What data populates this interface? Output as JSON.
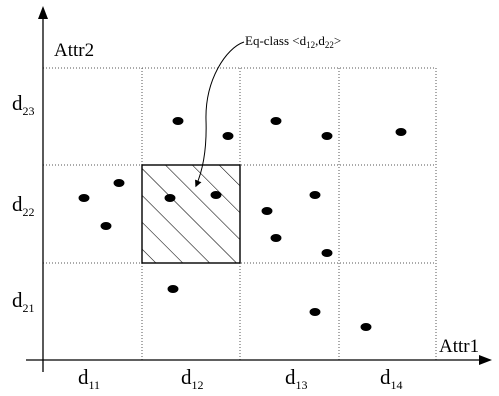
{
  "axes": {
    "x_label": "Attr1",
    "y_label": "Attr2"
  },
  "x_domains": [
    {
      "base": "d",
      "sub": "11"
    },
    {
      "base": "d",
      "sub": "12"
    },
    {
      "base": "d",
      "sub": "13"
    },
    {
      "base": "d",
      "sub": "14"
    }
  ],
  "y_domains": [
    {
      "base": "d",
      "sub": "21"
    },
    {
      "base": "d",
      "sub": "22"
    },
    {
      "base": "d",
      "sub": "23"
    }
  ],
  "callout": {
    "prefix": "Eq-class <d",
    "sub1": "12",
    "mid": ",d",
    "sub2": "22",
    "suffix": ">"
  },
  "highlighted_cell": {
    "x_domain": "d12",
    "y_domain": "d22"
  },
  "colors": {
    "grid": "#555555",
    "points": "#000000",
    "hatch": "#000000"
  }
}
